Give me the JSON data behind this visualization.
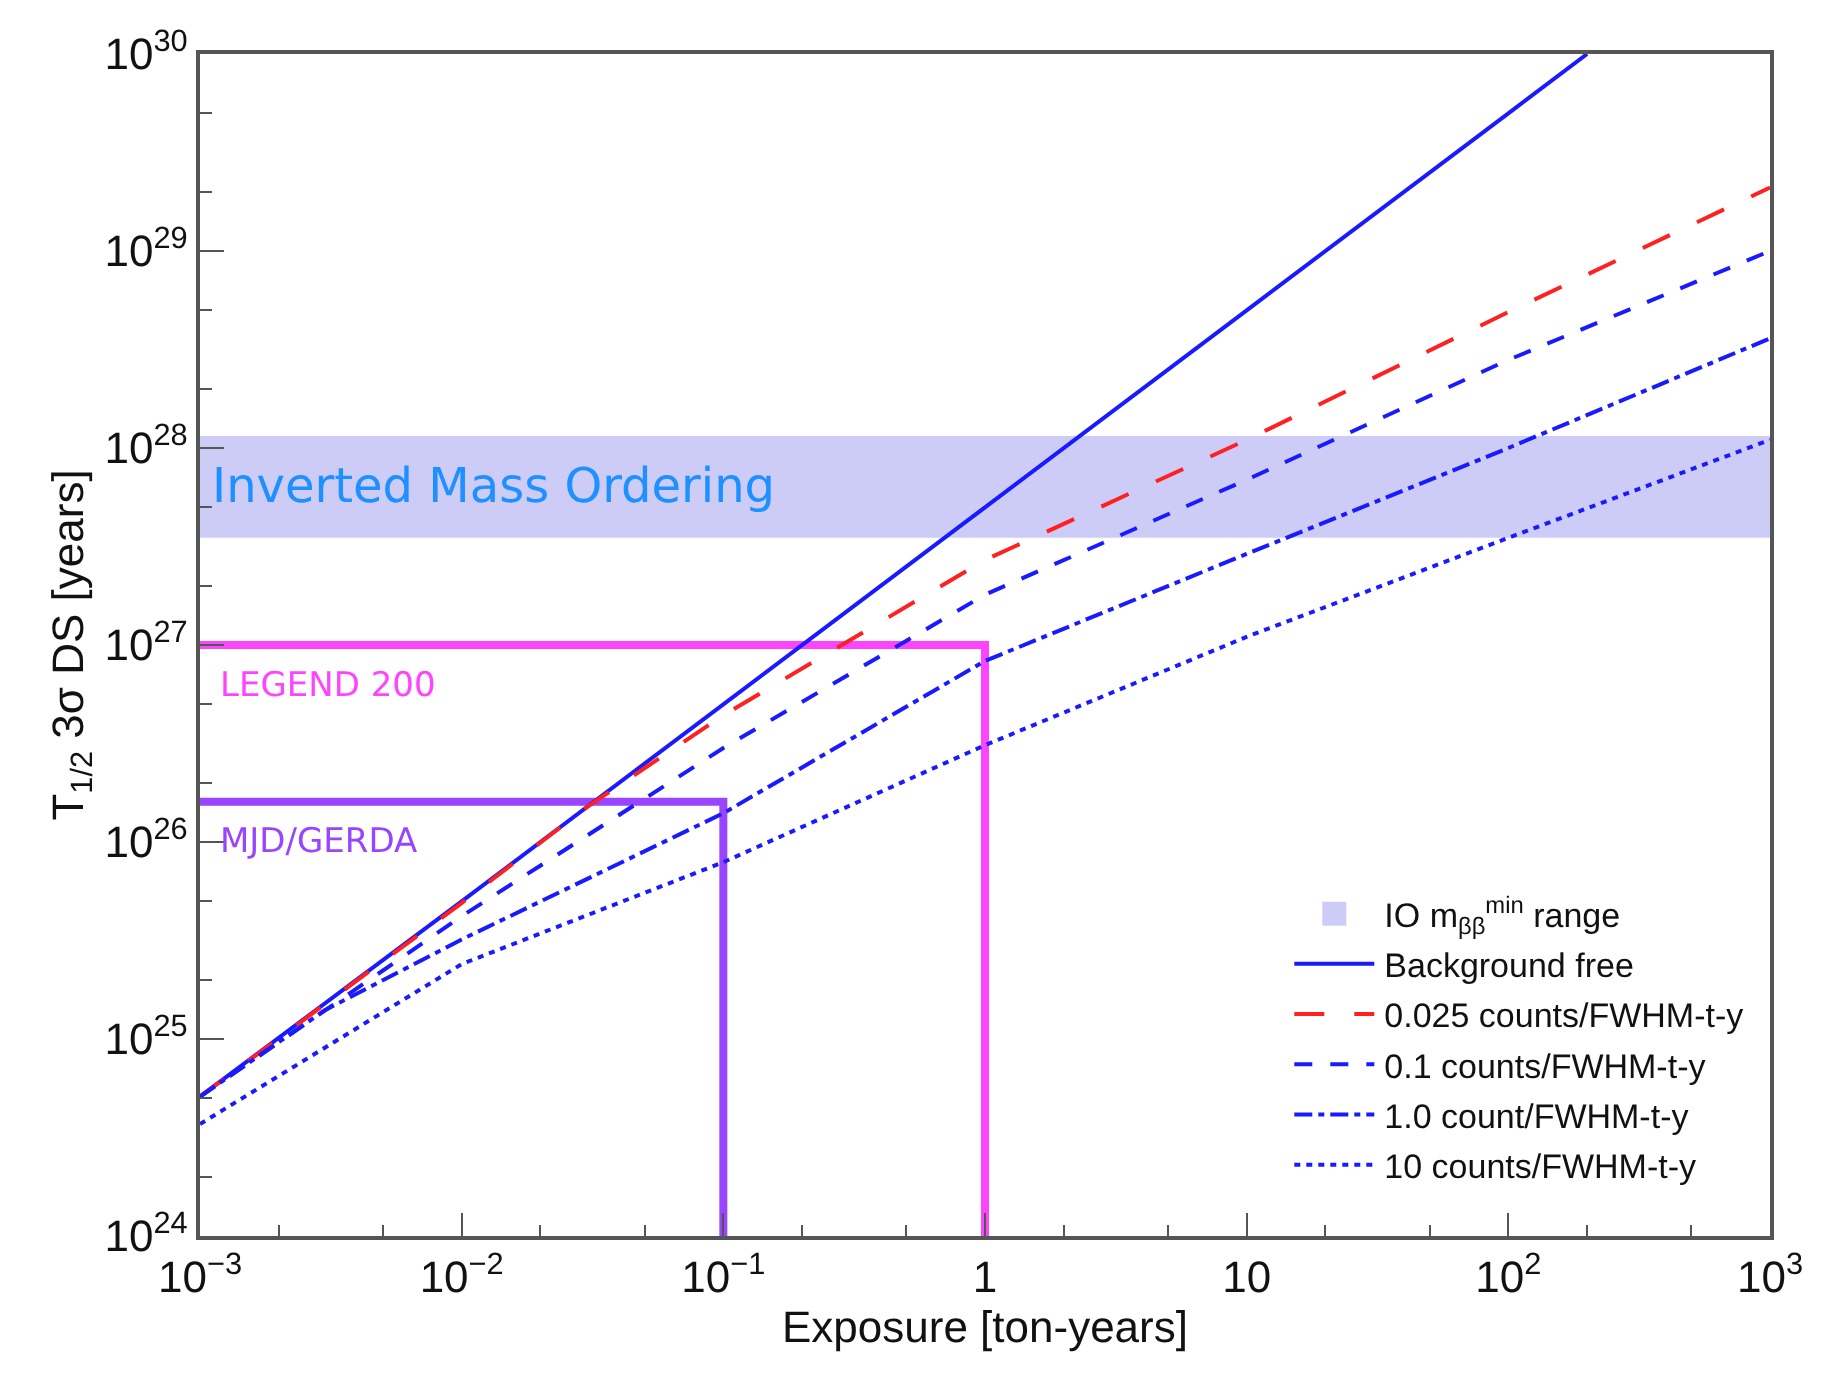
{
  "chart_data": {
    "type": "line",
    "xlabel": "Exposure [ton-years]",
    "ylabel": "T$_{1/2}$ 3σ DS [years]",
    "log": "xy",
    "grid": false,
    "legend": "bottom right",
    "xlim": [
      0.001,
      1000
    ],
    "ylim": [
      1e+24,
      1e+30
    ],
    "xticks": [
      {
        "value": 0.001,
        "label": "10$^{−3}$"
      },
      {
        "value": 0.01,
        "label": "10$^{−2}$"
      },
      {
        "value": 0.1,
        "label": "10$^{−1}$"
      },
      1,
      10,
      {
        "value": 100,
        "label": "10$^{2}$"
      },
      {
        "value": 1000,
        "label": "10$^{3}$"
      }
    ],
    "yticks": [
      {
        "value": 1e+24,
        "label": "10$^{24}$"
      },
      {
        "value": 1e+25,
        "label": "10$^{25}$"
      },
      {
        "value": 1e+26,
        "label": "10$^{26}$"
      },
      {
        "value": 1e+27,
        "label": "10$^{27}$"
      },
      {
        "value": 1e+28,
        "label": "10$^{28}$"
      },
      {
        "value": 1e+29,
        "label": "10$^{29}$"
      },
      {
        "value": 1e+30,
        "label": "10$^{30}$"
      }
    ],
    "bands": [
      {
        "axis": "y",
        "from": 3.5e+27,
        "to": 1.15e+28,
        "label": "IO m$_{ββ}$$^{min}$ range",
        "color": "#ccccf7"
      }
    ],
    "annotations": [
      "Inverted Mass Ordering",
      "LEGEND 200",
      "MJD/GERDA"
    ],
    "series": [
      {
        "color": "#ff44ff",
        "x": [
          0.001,
          1,
          1
        ],
        "values": [
          1e+27,
          1e+27,
          1e+24
        ]
      },
      {
        "color": "#9944ff",
        "x": [
          0.001,
          0.1,
          0.1
        ],
        "values": [
          1.6e+26,
          1.6e+26,
          1e+24
        ]
      },
      {
        "name": "Background free",
        "color": "#1a1aff",
        "line_style": "solid",
        "x": [
          0.001,
          0.01,
          0.1,
          1,
          10,
          100,
          200
        ],
        "values": [
          5.1e+24,
          5e+25,
          5e+26,
          5e+27,
          5e+28,
          5e+29,
          1e+30
        ]
      },
      {
        "name": "0.025 counts/FWHM-t-y",
        "color": "#ff2020",
        "line_style": "longdash",
        "x": [
          0.001,
          0.01,
          0.03,
          0.1,
          1,
          10,
          100,
          1000
        ],
        "values": [
          5.1e+24,
          4.9e+25,
          1.5e+26,
          4.4e+26,
          2.7e+27,
          1.1e+28,
          4.9e+28,
          2.1e+29
        ]
      },
      {
        "name": "0.1 counts/FWHM-t-y",
        "color": "#1a1aff",
        "line_style": "dashed",
        "x": [
          0.001,
          0.01,
          0.1,
          1,
          10,
          100,
          1000
        ],
        "values": [
          5.1e+24,
          4.2e+25,
          3e+26,
          1.8e+27,
          6.9e+27,
          2.8e+28,
          1e+29
        ]
      },
      {
        "name": "1.0 count/FWHM-t-y",
        "color": "#1a1aff",
        "line_style": "dashdot",
        "x": [
          0.001,
          0.003,
          0.01,
          0.1,
          1,
          10,
          100,
          1000
        ],
        "values": [
          5.1e+24,
          1.4e+25,
          3.2e+25,
          1.4e+26,
          8.3e+26,
          2.9e+27,
          1e+28,
          3.6e+28
        ]
      },
      {
        "name": "10 counts/FWHM-t-y",
        "color": "#1a1aff",
        "line_style": "dotted",
        "x": [
          0.001,
          0.01,
          0.1,
          1,
          10,
          100,
          1000
        ],
        "values": [
          3.7e+24,
          2.4e+25,
          7.9e+25,
          3.1e+26,
          1.1e+27,
          3.5e+27,
          1.1e+28
        ]
      }
    ]
  }
}
